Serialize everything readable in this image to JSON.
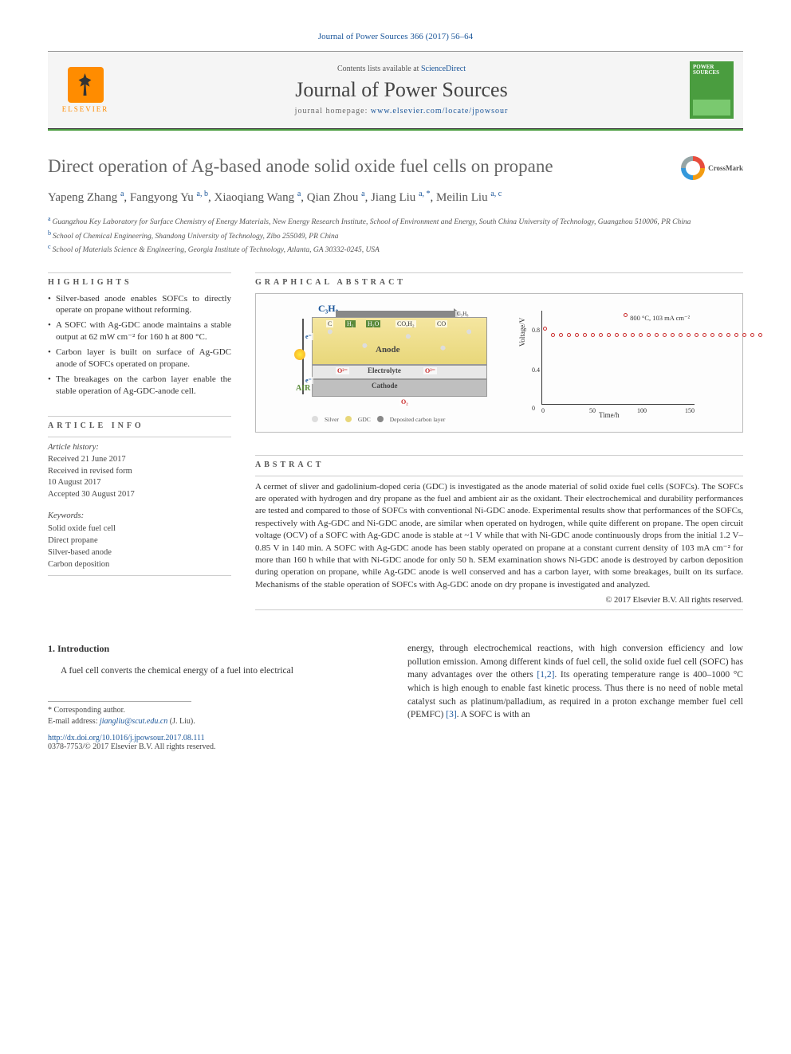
{
  "citation": "Journal of Power Sources 366 (2017) 56–64",
  "header": {
    "contents_prefix": "Contents lists available at ",
    "contents_link": "ScienceDirect",
    "journal_name": "Journal of Power Sources",
    "homepage_prefix": "journal homepage: ",
    "homepage_url": "www.elsevier.com/locate/jpowsour",
    "elsevier_label": "ELSEVIER",
    "cover_text": "POWER SOURCES"
  },
  "crossmark_label": "CrossMark",
  "title": "Direct operation of Ag-based anode solid oxide fuel cells on propane",
  "authors": [
    {
      "name": "Yapeng Zhang",
      "sup": "a"
    },
    {
      "name": "Fangyong Yu",
      "sup": "a, b"
    },
    {
      "name": "Xiaoqiang Wang",
      "sup": "a"
    },
    {
      "name": "Qian Zhou",
      "sup": "a"
    },
    {
      "name": "Jiang Liu",
      "sup": "a, *"
    },
    {
      "name": "Meilin Liu",
      "sup": "a, c"
    }
  ],
  "affiliations": [
    {
      "sup": "a",
      "text": "Guangzhou Key Laboratory for Surface Chemistry of Energy Materials, New Energy Research Institute, School of Environment and Energy, South China University of Technology, Guangzhou 510006, PR China"
    },
    {
      "sup": "b",
      "text": "School of Chemical Engineering, Shandong University of Technology, Zibo 255049, PR China"
    },
    {
      "sup": "c",
      "text": "School of Materials Science & Engineering, Georgia Institute of Technology, Atlanta, GA 30332-0245, USA"
    }
  ],
  "highlights": {
    "heading": "HIGHLIGHTS",
    "items": [
      "Silver-based anode enables SOFCs to directly operate on propane without reforming.",
      "A SOFC with Ag-GDC anode maintains a stable output at 62 mW cm⁻² for 160 h at 800 °C.",
      "Carbon layer is built on surface of Ag-GDC anode of SOFCs operated on propane.",
      "The breakages on the carbon layer enable the stable operation of Ag-GDC-anode cell."
    ]
  },
  "graphical_abstract": {
    "heading": "GRAPHICAL ABSTRACT",
    "diagram": {
      "fuel_label": "C₃H₈",
      "molecules": [
        "C",
        "H₂",
        "H₂O",
        "CO,H₂",
        "CO",
        "C₃H₈"
      ],
      "anode_label": "Anode",
      "electrolyte_label": "Electrolyte",
      "cathode_label": "Cathode",
      "air_label": "AIR",
      "o2_label": "O₂",
      "o2minus": "O²⁻",
      "eminus": "e⁻",
      "legend": [
        {
          "label": "Silver",
          "color": "#dddddd"
        },
        {
          "label": "GDC",
          "color": "#e8d77a"
        },
        {
          "label": "Deposited carbon layer",
          "color": "#888888"
        }
      ]
    },
    "chart": {
      "legend": "800 °C, 103 mA cm⁻²",
      "legend_marker_color": "#c92a2a",
      "ylabel": "Voltage/V",
      "xlabel": "Time/h",
      "yticks": [
        {
          "v": "0",
          "pos": 128
        },
        {
          "v": "0.4",
          "pos": 80
        },
        {
          "v": "0.8",
          "pos": 30
        }
      ],
      "xticks": [
        {
          "v": "0",
          "pos": 28
        },
        {
          "v": "50",
          "pos": 88
        },
        {
          "v": "100",
          "pos": 148
        },
        {
          "v": "150",
          "pos": 208
        }
      ],
      "point_color": "#c92a2a",
      "n_points": 28
    }
  },
  "article_info": {
    "heading": "ARTICLE INFO",
    "history_label": "Article history:",
    "dates": [
      "Received 21 June 2017",
      "Received in revised form",
      "10 August 2017",
      "Accepted 30 August 2017"
    ],
    "keywords_label": "Keywords:",
    "keywords": [
      "Solid oxide fuel cell",
      "Direct propane",
      "Silver-based anode",
      "Carbon deposition"
    ]
  },
  "abstract": {
    "heading": "ABSTRACT",
    "text": "A cermet of sliver and gadolinium-doped ceria (GDC) is investigated as the anode material of solid oxide fuel cells (SOFCs). The SOFCs are operated with hydrogen and dry propane as the fuel and ambient air as the oxidant. Their electrochemical and durability performances are tested and compared to those of SOFCs with conventional Ni-GDC anode. Experimental results show that performances of the SOFCs, respectively with Ag-GDC and Ni-GDC anode, are similar when operated on hydrogen, while quite different on propane. The open circuit voltage (OCV) of a SOFC with Ag-GDC anode is stable at ~1 V while that with Ni-GDC anode continuously drops from the initial 1.2 V–0.85 V in 140 min. A SOFC with Ag-GDC anode has been stably operated on propane at a constant current density of 103 mA cm⁻² for more than 160 h while that with Ni-GDC anode for only 50 h. SEM examination shows Ni-GDC anode is destroyed by carbon deposition during operation on propane, while Ag-GDC anode is well conserved and has a carbon layer, with some breakages, built on its surface. Mechanisms of the stable operation of SOFCs with Ag-GDC anode on dry propane is investigated and analyzed.",
    "copyright": "© 2017 Elsevier B.V. All rights reserved."
  },
  "intro": {
    "heading": "1. Introduction",
    "col1": "A fuel cell converts the chemical energy of a fuel into electrical",
    "col2_part1": "energy, through electrochemical reactions, with high conversion efficiency and low pollution emission. Among different kinds of fuel cell, the solid oxide fuel cell (SOFC) has many advantages over the others ",
    "col2_ref1": "[1,2]",
    "col2_part2": ". Its operating temperature range is 400–1000 °C which is high enough to enable fast kinetic process. Thus there is no need of noble metal catalyst such as platinum/palladium, as required in a proton exchange member fuel cell (PEMFC) ",
    "col2_ref2": "[3]",
    "col2_part3": ". A SOFC is with an"
  },
  "footer": {
    "corresponding": "* Corresponding author.",
    "email_label": "E-mail address: ",
    "email": "jiangliu@scut.edu.cn",
    "email_suffix": " (J. Liu).",
    "doi": "http://dx.doi.org/10.1016/j.jpowsour.2017.08.111",
    "issn": "0378-7753/© 2017 Elsevier B.V. All rights reserved."
  },
  "colors": {
    "link": "#1a5599",
    "accent": "#4a9d3f",
    "elsevier": "#ff8c00"
  }
}
